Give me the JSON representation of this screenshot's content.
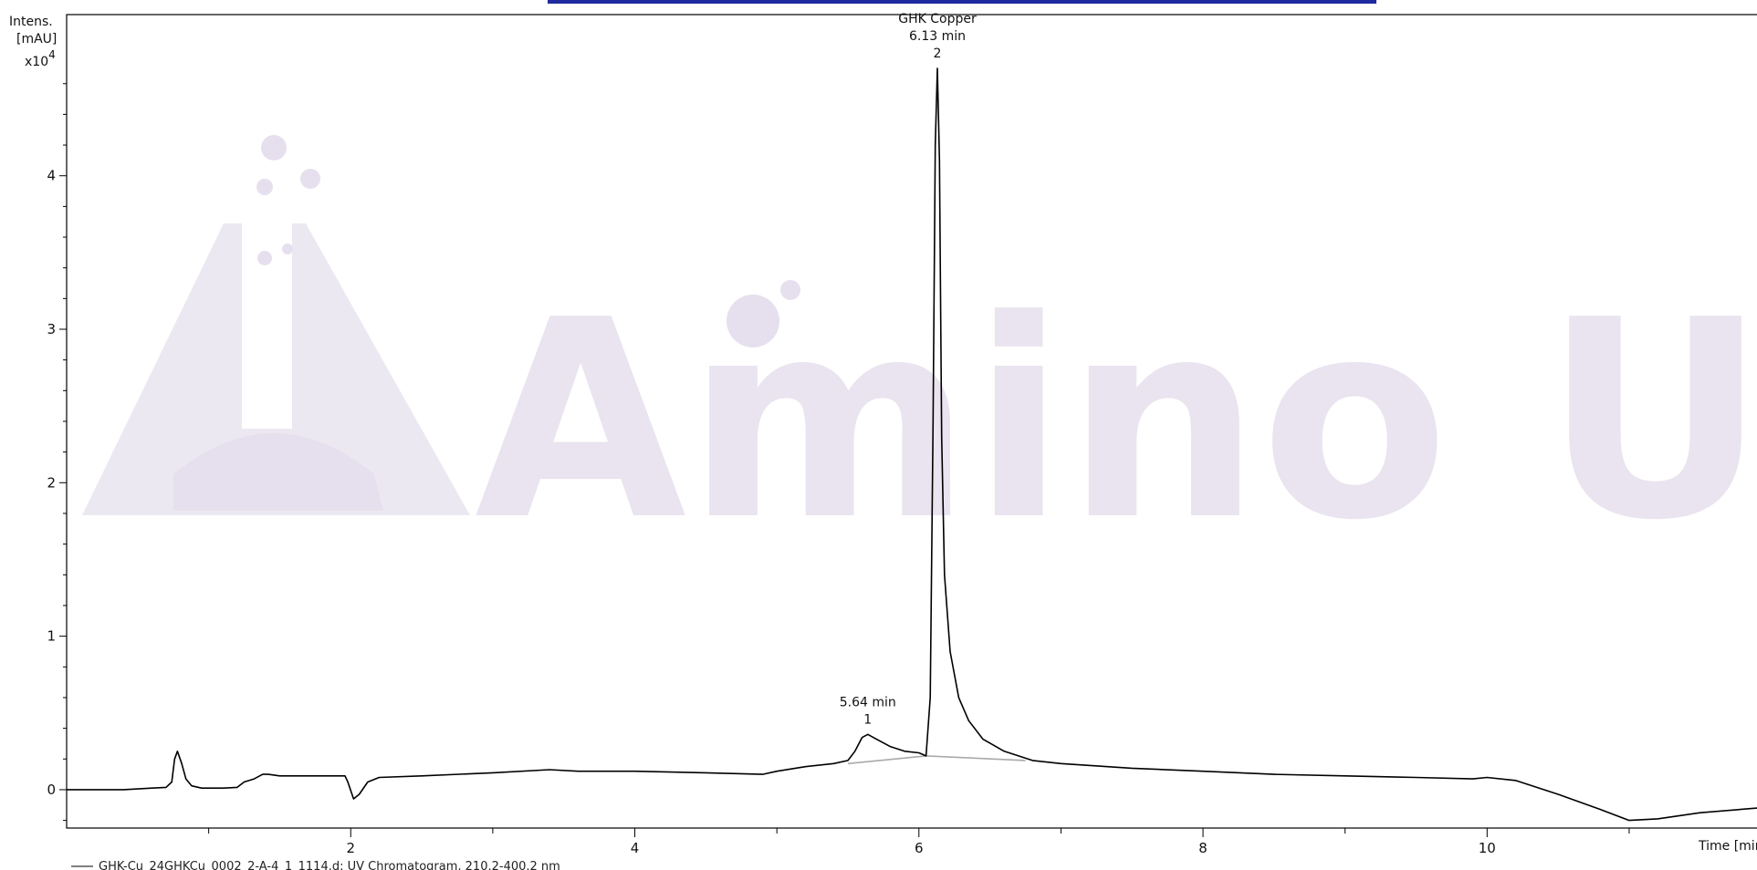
{
  "chart_data": {
    "type": "line",
    "title": "",
    "ylabel_lines": [
      "Intens.",
      "[mAU]"
    ],
    "y_exponent_label": "x10",
    "y_exponent": "4",
    "xlabel": "Time [min]",
    "xlim": [
      0,
      11.9
    ],
    "ylim": [
      -0.25,
      5.05
    ],
    "x_ticks": [
      2,
      4,
      6,
      8,
      10
    ],
    "y_ticks": [
      0,
      1,
      2,
      3,
      4
    ],
    "x_minor_ticks": [
      1,
      3,
      5,
      7,
      9,
      11
    ],
    "grid": false,
    "legend": "GHK-Cu_24GHKCu_0002_2-A-4_1_1114.d: UV Chromatogram, 210.2-400.2 nm",
    "watermark": "Amino USA",
    "series": [
      {
        "color": "#000000",
        "points": [
          [
            0,
            0
          ],
          [
            0.4,
            0
          ],
          [
            0.6,
            0.01
          ],
          [
            0.7,
            0.015
          ],
          [
            0.74,
            0.05
          ],
          [
            0.76,
            0.2
          ],
          [
            0.78,
            0.25
          ],
          [
            0.81,
            0.17
          ],
          [
            0.84,
            0.07
          ],
          [
            0.88,
            0.025
          ],
          [
            0.95,
            0.01
          ],
          [
            1.1,
            0.01
          ],
          [
            1.2,
            0.015
          ],
          [
            1.25,
            0.05
          ],
          [
            1.32,
            0.07
          ],
          [
            1.38,
            0.1
          ],
          [
            1.42,
            0.1
          ],
          [
            1.5,
            0.09
          ],
          [
            1.8,
            0.09
          ],
          [
            1.96,
            0.09
          ],
          [
            1.98,
            0.05
          ],
          [
            2.02,
            -0.06
          ],
          [
            2.06,
            -0.03
          ],
          [
            2.12,
            0.05
          ],
          [
            2.2,
            0.08
          ],
          [
            2.5,
            0.09
          ],
          [
            3.0,
            0.11
          ],
          [
            3.4,
            0.13
          ],
          [
            3.6,
            0.12
          ],
          [
            4.0,
            0.12
          ],
          [
            4.5,
            0.11
          ],
          [
            4.9,
            0.1
          ],
          [
            5.0,
            0.12
          ],
          [
            5.2,
            0.15
          ],
          [
            5.4,
            0.17
          ],
          [
            5.5,
            0.19
          ],
          [
            5.55,
            0.25
          ],
          [
            5.6,
            0.34
          ],
          [
            5.64,
            0.36
          ],
          [
            5.7,
            0.33
          ],
          [
            5.8,
            0.28
          ],
          [
            5.9,
            0.25
          ],
          [
            6.0,
            0.24
          ],
          [
            6.05,
            0.22
          ],
          [
            6.08,
            0.6
          ],
          [
            6.1,
            2.4
          ],
          [
            6.115,
            4.2
          ],
          [
            6.13,
            4.7
          ],
          [
            6.145,
            4.1
          ],
          [
            6.16,
            2.3
          ],
          [
            6.18,
            1.4
          ],
          [
            6.22,
            0.9
          ],
          [
            6.28,
            0.6
          ],
          [
            6.35,
            0.45
          ],
          [
            6.45,
            0.33
          ],
          [
            6.6,
            0.25
          ],
          [
            6.8,
            0.19
          ],
          [
            7.0,
            0.17
          ],
          [
            7.5,
            0.14
          ],
          [
            8.0,
            0.12
          ],
          [
            8.5,
            0.1
          ],
          [
            9.0,
            0.09
          ],
          [
            9.5,
            0.08
          ],
          [
            9.9,
            0.07
          ],
          [
            10.0,
            0.08
          ],
          [
            10.2,
            0.06
          ],
          [
            10.5,
            -0.03
          ],
          [
            10.8,
            -0.13
          ],
          [
            11.0,
            -0.2
          ],
          [
            11.2,
            -0.19
          ],
          [
            11.5,
            -0.15
          ],
          [
            11.9,
            -0.12
          ]
        ]
      }
    ],
    "baselines": [
      {
        "color": "#aaaaaa",
        "points": [
          [
            5.5,
            0.17
          ],
          [
            6.05,
            0.22
          ]
        ]
      },
      {
        "color": "#aaaaaa",
        "points": [
          [
            6.05,
            0.22
          ],
          [
            6.75,
            0.19
          ]
        ]
      }
    ],
    "peaks": [
      {
        "x": 5.64,
        "y": 0.36,
        "lines": [
          "5.64 min",
          "1"
        ]
      },
      {
        "x": 6.13,
        "y": 4.7,
        "lines": [
          "GHK Copper",
          "6.13 min",
          "2"
        ]
      }
    ]
  }
}
